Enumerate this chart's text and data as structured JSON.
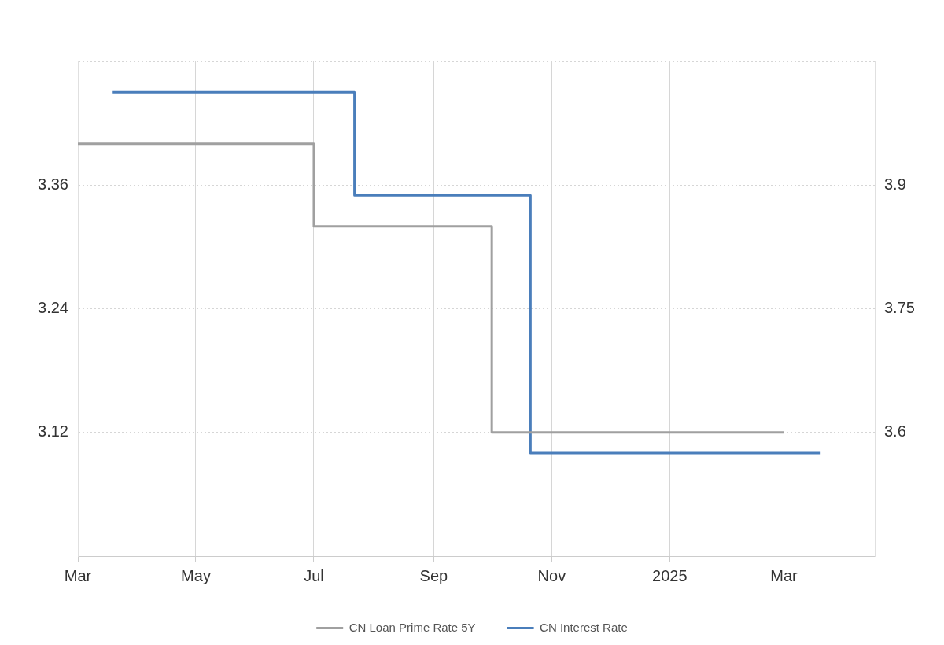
{
  "chart_data": {
    "type": "step",
    "xlim": [
      "2024-03-01",
      "2025-04-17"
    ],
    "xticks": [
      {
        "value": "2024-03-01",
        "label": "Mar"
      },
      {
        "value": "2024-05-01",
        "label": "May"
      },
      {
        "value": "2024-07-01",
        "label": "Jul"
      },
      {
        "value": "2024-09-01",
        "label": "Sep"
      },
      {
        "value": "2024-11-01",
        "label": "Nov"
      },
      {
        "value": "2025-01-01",
        "label": "2025"
      },
      {
        "value": "2025-03-01",
        "label": "Mar"
      }
    ],
    "ylim": [
      3.0,
      3.48
    ],
    "yticks": [
      3.12,
      3.24,
      3.36,
      {
        "value": 3.48,
        "label": null
      }
    ],
    "y2lim": [
      3.45,
      4.05
    ],
    "y2ticks": [
      3.6,
      3.75,
      3.9
    ],
    "grid": true,
    "legend": "bottom",
    "marker": "none",
    "line_style": "solid",
    "series": [
      {
        "name": "CN Loan Prime Rate 5Y",
        "color": "#a0a0a0",
        "axis": "y2",
        "x": [
          "2024-03-01",
          "2024-07-01",
          "2024-10-01",
          "2025-03-01"
        ],
        "values": [
          3.95,
          3.85,
          3.6,
          3.6
        ]
      },
      {
        "name": "CN Interest Rate",
        "color": "#4a7ebb",
        "x": [
          "2024-03-19",
          "2024-07-22",
          "2024-10-21",
          "2025-03-20"
        ],
        "values": [
          3.45,
          3.35,
          3.1,
          3.1
        ]
      }
    ]
  }
}
